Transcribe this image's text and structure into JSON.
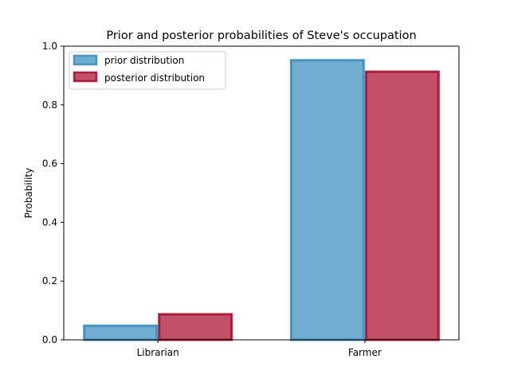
{
  "chart_data": {
    "type": "bar",
    "title": "Prior and posterior probabilities of Steve's occupation",
    "xlabel": "",
    "ylabel": "Probability",
    "categories": [
      "Librarian",
      "Farmer"
    ],
    "ylim": [
      0,
      1.0
    ],
    "yticks": [
      "0.0",
      "0.2",
      "0.4",
      "0.6",
      "0.8",
      "1.0"
    ],
    "grid": false,
    "legend_position": "upper-left",
    "series": [
      {
        "name": "prior distribution",
        "values": [
          0.048,
          0.952
        ],
        "fill": "#348ABD",
        "edge": "#348ABD"
      },
      {
        "name": "posterior distribution",
        "values": [
          0.087,
          0.913
        ],
        "fill": "#A60628",
        "edge": "#A60628"
      }
    ]
  }
}
